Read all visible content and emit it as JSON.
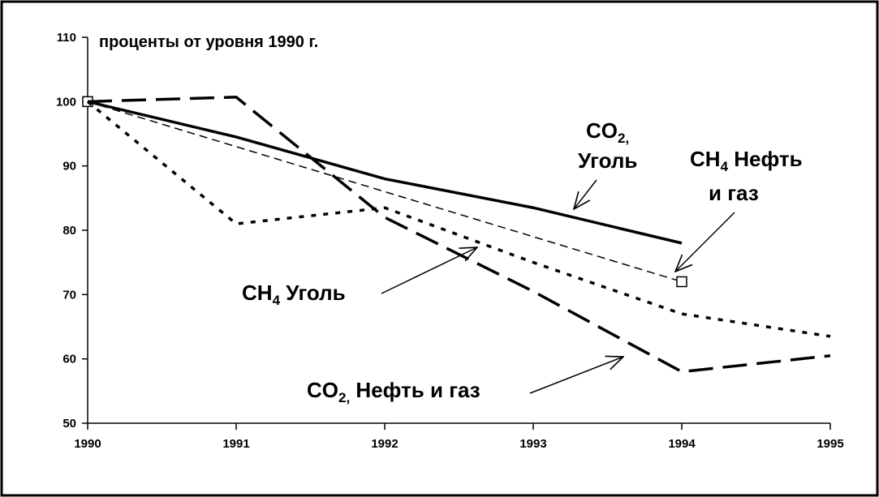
{
  "chart_data": {
    "type": "line",
    "y_label": "проценты от уровня 1990 г.",
    "x": [
      1990,
      1991,
      1992,
      1993,
      1994,
      1995
    ],
    "xlim": [
      1990,
      1995
    ],
    "xticks": [
      1990,
      1991,
      1992,
      1993,
      1994,
      1995
    ],
    "ylim": [
      50,
      110
    ],
    "yticks": [
      50,
      60,
      70,
      80,
      90,
      100,
      110
    ],
    "grid": false,
    "series": [
      {
        "color": "#000000",
        "dash": "solid",
        "values": [
          100,
          94.5,
          88,
          83.5,
          78,
          null
        ]
      },
      {
        "color": "#000000",
        "dash": "thin-dash",
        "markers": "ends",
        "values": [
          100,
          93,
          86,
          79,
          72,
          null
        ]
      },
      {
        "color": "#000000",
        "dash": "dot",
        "values": [
          100,
          81,
          83.5,
          75,
          67,
          63.5
        ]
      },
      {
        "color": "#000000",
        "dash": "long-dash",
        "values": [
          100,
          100.7,
          82,
          70.5,
          58,
          60.5
        ]
      }
    ],
    "annotations": [
      {
        "lines": [
          [
            {
              "text": "CO"
            },
            {
              "text": "2,",
              "sub": true
            }
          ],
          [
            {
              "text": "Уголь"
            }
          ]
        ]
      },
      {
        "lines": [
          [
            {
              "text": "CH"
            },
            {
              "text": "4",
              "sub": true
            },
            {
              "text": " Нефть"
            }
          ],
          [
            {
              "text": "и газ"
            }
          ]
        ]
      },
      {
        "lines": [
          [
            {
              "text": "CH"
            },
            {
              "text": "4",
              "sub": true
            },
            {
              "text": " Уголь"
            }
          ]
        ]
      },
      {
        "lines": [
          [
            {
              "text": "CO"
            },
            {
              "text": "2,",
              "sub": true
            },
            {
              "text": " Нефть и газ"
            }
          ]
        ]
      }
    ]
  }
}
